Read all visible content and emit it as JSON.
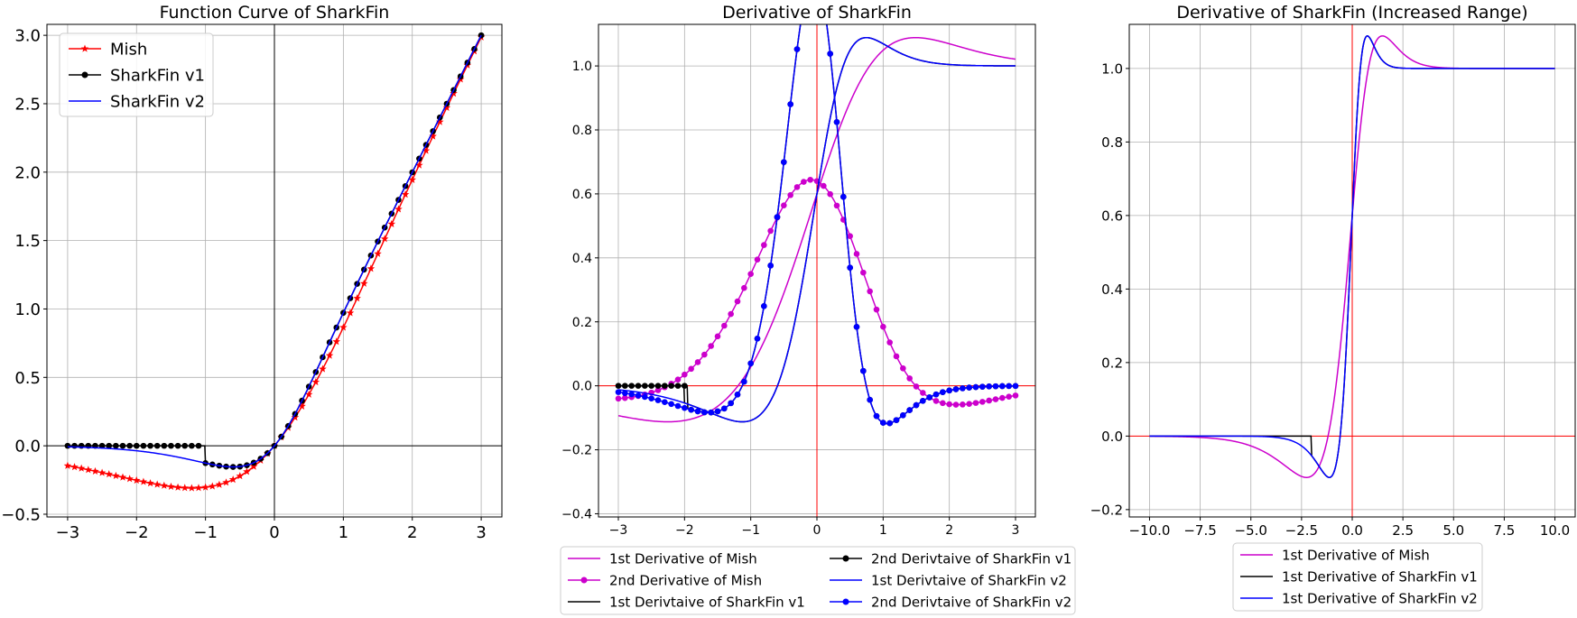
{
  "chart_data": [
    {
      "type": "line",
      "title": "Function Curve of SharkFin",
      "xlabel": "",
      "ylabel": "",
      "xlim": [
        -3.3,
        3.3
      ],
      "ylim": [
        -0.52,
        3.08
      ],
      "xticks": [
        -3,
        -2,
        -1,
        0,
        1,
        2,
        3
      ],
      "xtick_labels": [
        "−3",
        "−2",
        "−1",
        "0",
        "1",
        "2",
        "3"
      ],
      "yticks": [
        -0.5,
        0.0,
        0.5,
        1.0,
        1.5,
        2.0,
        2.5,
        3.0
      ],
      "ytick_labels": [
        "−0.5",
        "0.0",
        "0.5",
        "1.0",
        "1.5",
        "2.0",
        "2.5",
        "3.0"
      ],
      "grid": true,
      "legend_position": "top-left",
      "zero_lines": {
        "color": "#000000"
      },
      "series": [
        {
          "name": "Mish",
          "color": "#ff0000",
          "marker": "star",
          "func": "mish"
        },
        {
          "name": "SharkFin v1",
          "color": "#000000",
          "marker": "circle",
          "func": "v1"
        },
        {
          "name": "SharkFin v2",
          "color": "#0000ff",
          "marker": "none",
          "func": "v2"
        }
      ]
    },
    {
      "type": "line",
      "title": "Derivative of SharkFin",
      "xlabel": "",
      "ylabel": "",
      "xlim": [
        -3.3,
        3.3
      ],
      "ylim": [
        -0.41,
        1.13
      ],
      "xticks": [
        -3,
        -2,
        -1,
        0,
        1,
        2,
        3
      ],
      "xtick_labels": [
        "−3",
        "−2",
        "−1",
        "0",
        "1",
        "2",
        "3"
      ],
      "yticks": [
        -0.4,
        -0.2,
        0.0,
        0.2,
        0.4,
        0.6,
        0.8,
        1.0
      ],
      "ytick_labels": [
        "−0.4",
        "−0.2",
        "0.0",
        "0.2",
        "0.4",
        "0.6",
        "0.8",
        "1.0"
      ],
      "grid": true,
      "legend_position": "below",
      "zero_lines": {
        "color": "#ff0000"
      },
      "series": [
        {
          "name": "1st Derivative of Mish",
          "color": "#cc00cc",
          "marker": "none",
          "func": "mish1"
        },
        {
          "name": "2nd Derivative of Mish",
          "color": "#cc00cc",
          "marker": "circle",
          "func": "mish2"
        },
        {
          "name": "1st Derivtaive of SharkFin v1",
          "color": "#000000",
          "marker": "none",
          "func": "v1d1"
        },
        {
          "name": "2nd Derivtaive of SharkFin v1",
          "color": "#000000",
          "marker": "circle",
          "func": "v1d2"
        },
        {
          "name": "1st Derivtaive of SharkFin v2",
          "color": "#0000ff",
          "marker": "none",
          "func": "v2d1"
        },
        {
          "name": "2nd Derivtaive of SharkFin v2",
          "color": "#0000ff",
          "marker": "circle",
          "func": "v2d2"
        }
      ]
    },
    {
      "type": "line",
      "title": "Derivative of SharkFin (Increased Range)",
      "xlabel": "",
      "ylabel": "",
      "xlim": [
        -11.0,
        11.0
      ],
      "ylim": [
        -0.22,
        1.12
      ],
      "xticks": [
        -10.0,
        -7.5,
        -5.0,
        -2.5,
        0.0,
        2.5,
        5.0,
        7.5,
        10.0
      ],
      "xtick_labels": [
        "−10.0",
        "−7.5",
        "−5.0",
        "−2.5",
        "0.0",
        "2.5",
        "5.0",
        "7.5",
        "10.0"
      ],
      "yticks": [
        -0.2,
        0.0,
        0.2,
        0.4,
        0.6,
        0.8,
        1.0
      ],
      "ytick_labels": [
        "−0.2",
        "0.0",
        "0.2",
        "0.4",
        "0.6",
        "0.8",
        "1.0"
      ],
      "grid": true,
      "legend_position": "below",
      "zero_lines": {
        "color": "#ff0000"
      },
      "series": [
        {
          "name": "1st Derivative of Mish",
          "color": "#cc00cc",
          "marker": "none",
          "func": "mish1"
        },
        {
          "name": "1st Derivative of  SharkFin v1",
          "color": "#000000",
          "marker": "none",
          "func": "v1d1"
        },
        {
          "name": "1st Derivative of  SharkFin v2",
          "color": "#0000ff",
          "marker": "none",
          "func": "v2d1"
        }
      ]
    }
  ]
}
